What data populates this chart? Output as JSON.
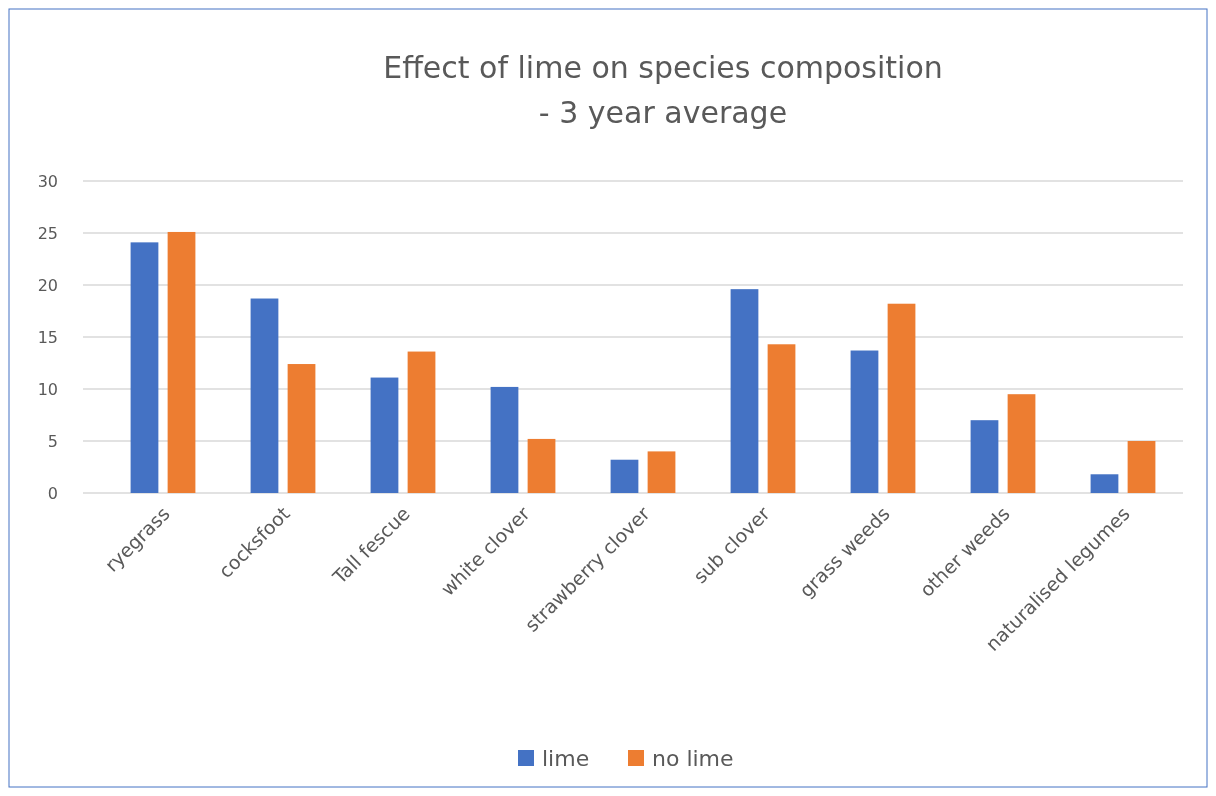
{
  "chart_data": {
    "type": "bar",
    "title": "Effect of lime on species composition",
    "subtitle": "- 3 year average",
    "categories": [
      "ryegrass",
      "cocksfoot",
      "Tall fescue",
      "white clover",
      "strawberry clover",
      "sub clover",
      "grass weeds",
      "other weeds",
      "naturalised legumes"
    ],
    "series": [
      {
        "name": "lime",
        "color": "#4472c4",
        "values": [
          24.1,
          18.7,
          11.1,
          10.2,
          3.2,
          19.6,
          13.7,
          7.0,
          1.8
        ]
      },
      {
        "name": "no lime",
        "color": "#ed7d31",
        "values": [
          25.1,
          12.4,
          13.6,
          5.2,
          4.0,
          14.3,
          18.2,
          9.5,
          5.0
        ]
      }
    ],
    "ylim": [
      0,
      30
    ],
    "yticks": [
      0,
      5,
      10,
      15,
      20,
      25,
      30
    ],
    "grid": "y",
    "legend": "bottom"
  }
}
